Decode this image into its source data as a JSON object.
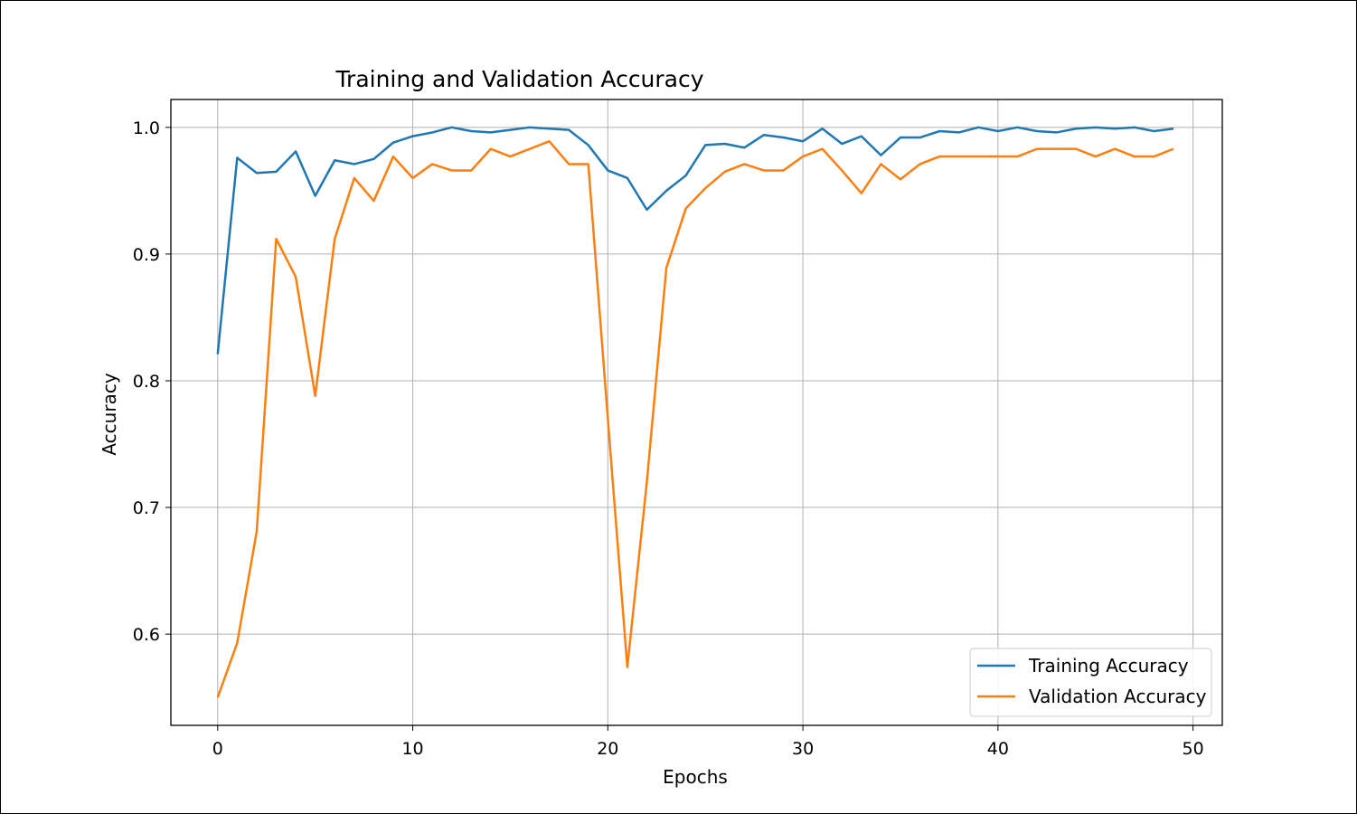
{
  "chart_data": {
    "type": "line",
    "title": "Training and Validation Accuracy",
    "xlabel": "Epochs",
    "ylabel": "Accuracy",
    "xlim": [
      -2.4,
      51.5
    ],
    "ylim": [
      0.528,
      1.022
    ],
    "xticks": [
      0,
      10,
      20,
      30,
      40,
      50
    ],
    "yticks": [
      0.6,
      0.7,
      0.8,
      0.9,
      1.0
    ],
    "ytick_labels": [
      "0.6",
      "0.7",
      "0.8",
      "0.9",
      "1.0"
    ],
    "grid": true,
    "legend_position": "lower-right",
    "x": [
      0,
      1,
      2,
      3,
      4,
      5,
      6,
      7,
      8,
      9,
      10,
      11,
      12,
      13,
      14,
      15,
      16,
      17,
      18,
      19,
      20,
      21,
      22,
      23,
      24,
      25,
      26,
      27,
      28,
      29,
      30,
      31,
      32,
      33,
      34,
      35,
      36,
      37,
      38,
      39,
      40,
      41,
      42,
      43,
      44,
      45,
      46,
      47,
      48,
      49
    ],
    "series": [
      {
        "name": "Training Accuracy",
        "color": "#1f77b4",
        "values": [
          0.821,
          0.976,
          0.964,
          0.965,
          0.981,
          0.946,
          0.974,
          0.971,
          0.975,
          0.988,
          0.993,
          0.996,
          1.0,
          0.997,
          0.996,
          0.998,
          1.0,
          0.999,
          0.998,
          0.986,
          0.966,
          0.96,
          0.935,
          0.95,
          0.962,
          0.986,
          0.987,
          0.984,
          0.994,
          0.992,
          0.989,
          0.999,
          0.987,
          0.993,
          0.978,
          0.992,
          0.992,
          0.997,
          0.996,
          1.0,
          0.997,
          1.0,
          0.997,
          0.996,
          0.999,
          1.0,
          0.999,
          1.0,
          0.997,
          0.999
        ]
      },
      {
        "name": "Validation Accuracy",
        "color": "#ff7f0e",
        "values": [
          0.55,
          0.593,
          0.681,
          0.912,
          0.882,
          0.788,
          0.912,
          0.96,
          0.942,
          0.977,
          0.96,
          0.971,
          0.966,
          0.966,
          0.983,
          0.977,
          0.983,
          0.989,
          0.971,
          0.971,
          0.77,
          0.574,
          0.72,
          0.889,
          0.936,
          0.952,
          0.965,
          0.971,
          0.966,
          0.966,
          0.977,
          0.983,
          0.966,
          0.948,
          0.971,
          0.959,
          0.971,
          0.977,
          0.977,
          0.977,
          0.977,
          0.977,
          0.983,
          0.983,
          0.983,
          0.977,
          0.983,
          0.977,
          0.977,
          0.983
        ]
      }
    ]
  }
}
